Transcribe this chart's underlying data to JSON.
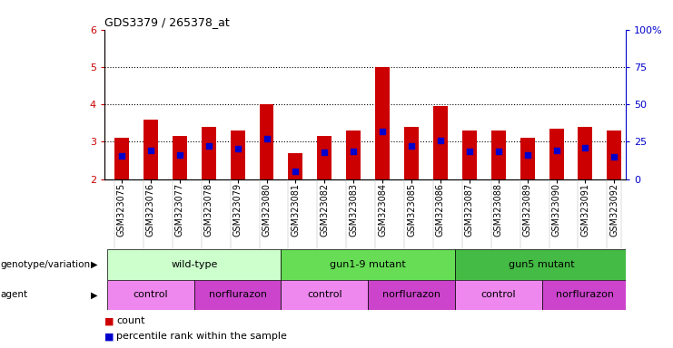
{
  "title": "GDS3379 / 265378_at",
  "samples": [
    "GSM323075",
    "GSM323076",
    "GSM323077",
    "GSM323078",
    "GSM323079",
    "GSM323080",
    "GSM323081",
    "GSM323082",
    "GSM323083",
    "GSM323084",
    "GSM323085",
    "GSM323086",
    "GSM323087",
    "GSM323088",
    "GSM323089",
    "GSM323090",
    "GSM323091",
    "GSM323092"
  ],
  "bar_heights": [
    3.1,
    3.6,
    3.15,
    3.4,
    3.3,
    4.0,
    2.7,
    3.15,
    3.3,
    5.0,
    3.4,
    3.95,
    3.3,
    3.3,
    3.1,
    3.35,
    3.4,
    3.3
  ],
  "blue_pos": [
    2.62,
    2.78,
    2.65,
    2.88,
    2.82,
    3.08,
    2.22,
    2.72,
    2.75,
    3.28,
    2.88,
    3.03,
    2.75,
    2.75,
    2.65,
    2.78,
    2.85,
    2.6
  ],
  "ylim_left": [
    2.0,
    6.0
  ],
  "yticks_left": [
    2,
    3,
    4,
    5,
    6
  ],
  "yticks_right_vals": [
    0,
    25,
    50,
    75,
    100
  ],
  "yticks_right_labels": [
    "0",
    "25",
    "50",
    "75",
    "100%"
  ],
  "bar_color": "#cc0000",
  "blue_color": "#0000cc",
  "left_tick_color": "#cc0000",
  "right_tick_color": "#0000cc",
  "background_color": "#ffffff",
  "genotype_groups": [
    {
      "label": "wild-type",
      "start": 0,
      "end": 5,
      "color": "#ccffcc"
    },
    {
      "label": "gun1-9 mutant",
      "start": 6,
      "end": 11,
      "color": "#66dd55"
    },
    {
      "label": "gun5 mutant",
      "start": 12,
      "end": 17,
      "color": "#44bb44"
    }
  ],
  "agent_groups": [
    {
      "label": "control",
      "start": 0,
      "end": 2,
      "color": "#ee88ee"
    },
    {
      "label": "norflurazon",
      "start": 3,
      "end": 5,
      "color": "#cc44cc"
    },
    {
      "label": "control",
      "start": 6,
      "end": 8,
      "color": "#ee88ee"
    },
    {
      "label": "norflurazon",
      "start": 9,
      "end": 11,
      "color": "#cc44cc"
    },
    {
      "label": "control",
      "start": 12,
      "end": 14,
      "color": "#ee88ee"
    },
    {
      "label": "norflurazon",
      "start": 15,
      "end": 17,
      "color": "#cc44cc"
    }
  ],
  "xlim": [
    -0.6,
    17.4
  ],
  "bar_width": 0.5,
  "grid_lines": [
    3,
    4,
    5
  ]
}
